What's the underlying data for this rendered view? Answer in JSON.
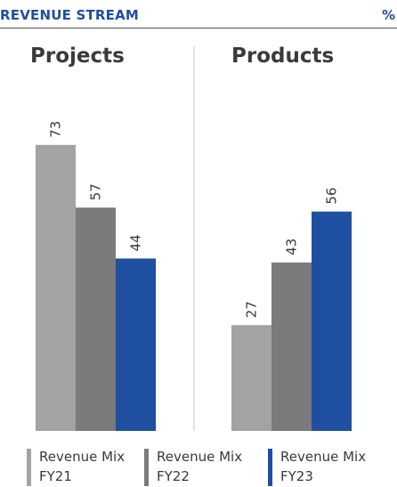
{
  "header": {
    "title": "REVENUE STREAM",
    "unit": "%"
  },
  "colors": {
    "accent": "#1f4fa0",
    "fy21": "#a3a3a3",
    "fy22": "#7b7b7b",
    "fy23": "#1f4fa0",
    "divider": "#c8c8c8",
    "text": "#3a3a3a"
  },
  "chart_data": {
    "type": "bar",
    "ylim": [
      0,
      100
    ],
    "grid": false,
    "legend_position": "bottom",
    "panels": [
      {
        "name": "Projects",
        "values": [
          73,
          57,
          44
        ]
      },
      {
        "name": "Products",
        "values": [
          27,
          43,
          56
        ]
      }
    ],
    "series": [
      {
        "name": "Revenue Mix FY21",
        "line1": "Revenue Mix",
        "line2": "FY21"
      },
      {
        "name": "Revenue Mix FY22",
        "line1": "Revenue Mix",
        "line2": "FY22"
      },
      {
        "name": "Revenue Mix FY23",
        "line1": "Revenue Mix",
        "line2": "FY23"
      }
    ]
  }
}
